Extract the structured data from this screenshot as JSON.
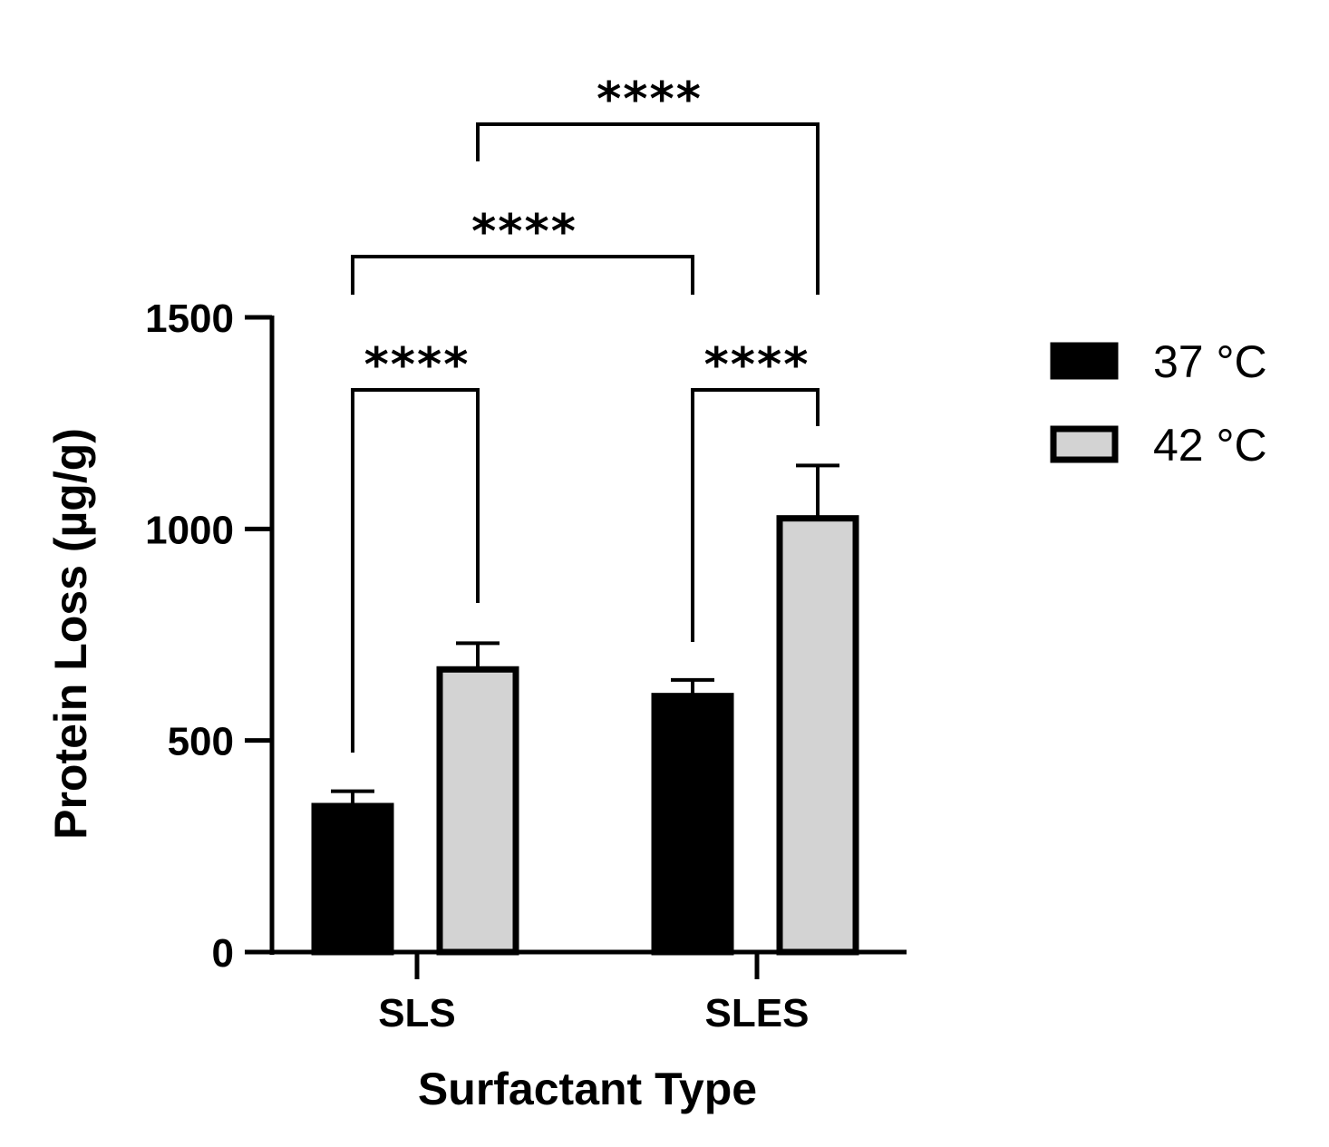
{
  "chart_data": {
    "type": "bar",
    "title": "",
    "xlabel": "Surfactant Type",
    "ylabel": "Protein Loss (µg/g)",
    "ylim": [
      0,
      1500
    ],
    "yticks": [
      "0",
      "500",
      "1000",
      "1500"
    ],
    "categories": [
      "SLS",
      "SLES"
    ],
    "series": [
      {
        "name": "37 °C",
        "color": "#000000",
        "values": [
          345,
          605
        ],
        "errors": [
          35,
          38
        ]
      },
      {
        "name": "42 °C",
        "color": "#d3d3d3",
        "values": [
          668,
          1025
        ],
        "errors": [
          62,
          125
        ]
      }
    ],
    "legend_position": "right",
    "grid": false,
    "significance": [
      {
        "label": "****",
        "from": [
          0,
          0
        ],
        "to": [
          0,
          1
        ]
      },
      {
        "label": "****",
        "from": [
          1,
          0
        ],
        "to": [
          1,
          1
        ]
      },
      {
        "label": "****",
        "from": [
          0,
          0
        ],
        "to": [
          1,
          0
        ]
      },
      {
        "label": "****",
        "from": [
          0,
          1
        ],
        "to": [
          1,
          1
        ]
      }
    ]
  }
}
